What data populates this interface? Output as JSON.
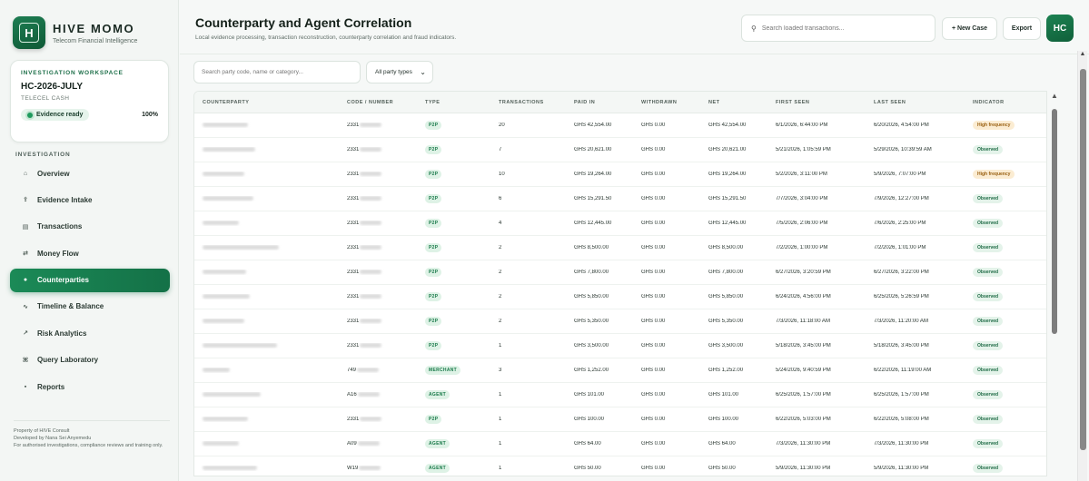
{
  "brand": {
    "logo_letter": "H",
    "name": "HIVE MOMO",
    "tagline": "Telecom Financial Intelligence"
  },
  "workspace": {
    "label": "INVESTIGATION WORKSPACE",
    "case_id": "HC-2026-JULY",
    "provider": "TELECEL CASH",
    "status": "Evidence ready",
    "progress": "100%"
  },
  "nav": {
    "heading": "INVESTIGATION",
    "items": [
      {
        "label": "Overview",
        "icon": "home-icon",
        "glyph": "⌂"
      },
      {
        "label": "Evidence Intake",
        "icon": "upload-icon",
        "glyph": "⇪"
      },
      {
        "label": "Transactions",
        "icon": "list-icon",
        "glyph": "▤"
      },
      {
        "label": "Money Flow",
        "icon": "flow-arrows-icon",
        "glyph": "⇄"
      },
      {
        "label": "Counterparties",
        "icon": "people-icon",
        "glyph": "●"
      },
      {
        "label": "Timeline & Balance",
        "icon": "wave-icon",
        "glyph": "∿"
      },
      {
        "label": "Risk Analytics",
        "icon": "trend-icon",
        "glyph": "↗"
      },
      {
        "label": "Query Laboratory",
        "icon": "command-icon",
        "glyph": "⌘"
      },
      {
        "label": "Reports",
        "icon": "report-icon",
        "glyph": "▪"
      }
    ],
    "active_index": 4
  },
  "footer": {
    "line1": "Property of HIVE Consult",
    "line2": "Developed by Nana Sei Anyemedu",
    "line3": "For authorised investigations, compliance reviews and training only."
  },
  "header": {
    "title": "Counterparty and Agent Correlation",
    "subtitle": "Local evidence processing, transaction reconstruction, counterparty correlation and fraud indicators.",
    "search_placeholder": "Search loaded transactions...",
    "new_case": "+ New Case",
    "export": "Export",
    "avatar": "HC"
  },
  "filters": {
    "search_placeholder": "Search party code, name or category...",
    "type_selected": "All party types"
  },
  "table": {
    "columns": [
      "COUNTERPARTY",
      "CODE / NUMBER",
      "TYPE",
      "TRANSACTIONS",
      "PAID IN",
      "WITHDRAWN",
      "NET",
      "FIRST SEEN",
      "LAST SEEN",
      "INDICATOR"
    ],
    "rows": [
      {
        "code": "2331",
        "type": "P2P",
        "tx": "20",
        "paid": "GHS 42,554.00",
        "wd": "GHS 0.00",
        "net": "GHS 42,554.00",
        "first": "6/1/2026, 6:44:00 PM",
        "last": "6/20/2026, 4:54:00 PM",
        "ind": "High frequency",
        "ind_kind": "high",
        "blur_w": 50
      },
      {
        "code": "2331",
        "type": "P2P",
        "tx": "7",
        "paid": "GHS 20,621.00",
        "wd": "GHS 0.00",
        "net": "GHS 20,621.00",
        "first": "5/21/2026, 1:05:59 PM",
        "last": "5/29/2026, 10:39:59 AM",
        "ind": "Observed",
        "ind_kind": "observed",
        "blur_w": 58
      },
      {
        "code": "2331",
        "type": "P2P",
        "tx": "10",
        "paid": "GHS 19,264.00",
        "wd": "GHS 0.00",
        "net": "GHS 19,264.00",
        "first": "5/2/2026, 3:11:00 PM",
        "last": "5/9/2026, 7:07:00 PM",
        "ind": "High frequency",
        "ind_kind": "high",
        "blur_w": 46
      },
      {
        "code": "2331",
        "type": "P2P",
        "tx": "6",
        "paid": "GHS 15,291.50",
        "wd": "GHS 0.00",
        "net": "GHS 15,291.50",
        "first": "7/7/2026, 3:04:00 PM",
        "last": "7/9/2026, 12:27:00 PM",
        "ind": "Observed",
        "ind_kind": "observed",
        "blur_w": 56
      },
      {
        "code": "2331",
        "type": "P2P",
        "tx": "4",
        "paid": "GHS 12,445.00",
        "wd": "GHS 0.00",
        "net": "GHS 12,445.00",
        "first": "7/5/2026, 2:06:00 PM",
        "last": "7/6/2026, 2:25:00 PM",
        "ind": "Observed",
        "ind_kind": "observed",
        "blur_w": 40
      },
      {
        "code": "2331",
        "type": "P2P",
        "tx": "2",
        "paid": "GHS 8,500.00",
        "wd": "GHS 0.00",
        "net": "GHS 8,500.00",
        "first": "7/2/2026, 1:00:00 PM",
        "last": "7/2/2026, 1:01:00 PM",
        "ind": "Observed",
        "ind_kind": "observed",
        "blur_w": 84
      },
      {
        "code": "2331",
        "type": "P2P",
        "tx": "2",
        "paid": "GHS 7,800.00",
        "wd": "GHS 0.00",
        "net": "GHS 7,800.00",
        "first": "6/27/2026, 3:20:59 PM",
        "last": "6/27/2026, 3:22:00 PM",
        "ind": "Observed",
        "ind_kind": "observed",
        "blur_w": 48
      },
      {
        "code": "2331",
        "type": "P2P",
        "tx": "2",
        "paid": "GHS 5,850.00",
        "wd": "GHS 0.00",
        "net": "GHS 5,850.00",
        "first": "6/24/2026, 4:56:00 PM",
        "last": "6/25/2026, 5:26:59 PM",
        "ind": "Observed",
        "ind_kind": "observed",
        "blur_w": 52
      },
      {
        "code": "2331",
        "type": "P2P",
        "tx": "2",
        "paid": "GHS 5,350.00",
        "wd": "GHS 0.00",
        "net": "GHS 5,350.00",
        "first": "7/3/2026, 11:18:00 AM",
        "last": "7/3/2026, 11:20:00 AM",
        "ind": "Observed",
        "ind_kind": "observed",
        "blur_w": 46
      },
      {
        "code": "2331",
        "type": "P2P",
        "tx": "1",
        "paid": "GHS 3,500.00",
        "wd": "GHS 0.00",
        "net": "GHS 3,500.00",
        "first": "5/18/2026, 3:45:00 PM",
        "last": "5/18/2026, 3:45:00 PM",
        "ind": "Observed",
        "ind_kind": "observed",
        "blur_w": 82
      },
      {
        "code": "749",
        "type": "MERCHANT",
        "tx": "3",
        "paid": "GHS 1,252.00",
        "wd": "GHS 0.00",
        "net": "GHS 1,252.00",
        "first": "5/24/2026, 9:40:59 PM",
        "last": "6/22/2026, 11:19:00 AM",
        "ind": "Observed",
        "ind_kind": "observed",
        "blur_w": 30
      },
      {
        "code": "A16",
        "type": "AGENT",
        "tx": "1",
        "paid": "GHS 101.00",
        "wd": "GHS 0.00",
        "net": "GHS 101.00",
        "first": "6/25/2026, 1:57:00 PM",
        "last": "6/25/2026, 1:57:00 PM",
        "ind": "Observed",
        "ind_kind": "observed",
        "blur_w": 64
      },
      {
        "code": "2331",
        "type": "P2P",
        "tx": "1",
        "paid": "GHS 100.00",
        "wd": "GHS 0.00",
        "net": "GHS 100.00",
        "first": "6/22/2026, 5:03:00 PM",
        "last": "6/22/2026, 5:08:00 PM",
        "ind": "Observed",
        "ind_kind": "observed",
        "blur_w": 50
      },
      {
        "code": "A09",
        "type": "AGENT",
        "tx": "1",
        "paid": "GHS 64.00",
        "wd": "GHS 0.00",
        "net": "GHS 64.00",
        "first": "7/3/2026, 11:30:00 PM",
        "last": "7/3/2026, 11:30:00 PM",
        "ind": "Observed",
        "ind_kind": "observed",
        "blur_w": 40
      },
      {
        "code": "W19",
        "type": "AGENT",
        "tx": "1",
        "paid": "GHS 50.00",
        "wd": "GHS 0.00",
        "net": "GHS 50.00",
        "first": "5/9/2026, 11:30:00 PM",
        "last": "5/9/2026, 11:30:00 PM",
        "ind": "Observed",
        "ind_kind": "observed",
        "blur_w": 60
      }
    ]
  }
}
